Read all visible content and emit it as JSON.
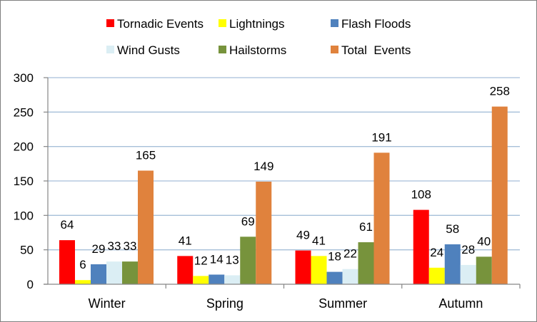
{
  "chart_data": {
    "type": "bar",
    "title": "",
    "xlabel": "",
    "ylabel": "",
    "categories": [
      "Winter",
      "Spring",
      "Summer",
      "Autumn"
    ],
    "ylim": [
      0,
      300
    ],
    "yticks": [
      "0",
      "50",
      "100",
      "150",
      "200",
      "250",
      "300"
    ],
    "grid": true,
    "legend_position": "top",
    "series": [
      {
        "name": "Tornadic Events",
        "color": "#ff0000",
        "values": [
          64,
          41,
          49,
          108
        ]
      },
      {
        "name": "Lightnings",
        "color": "#ffff00",
        "values": [
          6,
          12,
          41,
          24
        ]
      },
      {
        "name": "Flash Floods",
        "color": "#4f81bd",
        "values": [
          29,
          14,
          18,
          58
        ]
      },
      {
        "name": "Wind Gusts",
        "color": "#dbeef4",
        "values": [
          33,
          13,
          22,
          28
        ]
      },
      {
        "name": "Hailstorms",
        "color": "#77933c",
        "values": [
          33,
          69,
          61,
          40
        ]
      },
      {
        "name": "Total  Events",
        "color": "#e0823d",
        "values": [
          165,
          149,
          191,
          258
        ]
      }
    ]
  }
}
